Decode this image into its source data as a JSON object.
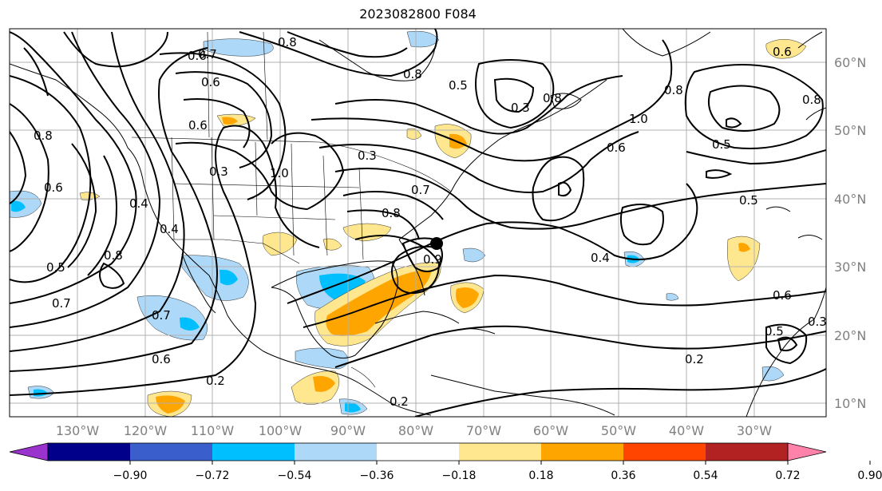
{
  "title": "2023082800 F084",
  "lat_labels": [
    "60°N",
    "50°N",
    "40°N",
    "30°N",
    "20°N",
    "10°N"
  ],
  "lon_labels": [
    "130°W",
    "120°W",
    "110°W",
    "100°W",
    "90°W",
    "80°W",
    "70°W",
    "60°W",
    "50°W",
    "40°W",
    "30°W"
  ],
  "colorbar": {
    "colors": [
      "#9a32cd",
      "#00008b",
      "#3a5fcd",
      "#00bfff",
      "#add8f7",
      "#ffffff",
      "#ffe78f",
      "#ffa500",
      "#ff4500",
      "#b22222",
      "#ff82ab"
    ],
    "ticks": [
      "−0.90",
      "−0.72",
      "−0.54",
      "−0.36",
      "−0.18",
      "0.18",
      "0.36",
      "0.54",
      "0.72",
      "0.90"
    ]
  },
  "contour_labels": [
    "0.6",
    "0.7",
    "0.6",
    "0.6",
    "0.3",
    "0.8",
    "1.0",
    "0.8",
    "0.5",
    "0.3",
    "0.8",
    "1.0",
    "0.6",
    "0.8",
    "0.5",
    "0.5",
    "0.6",
    "0.6",
    "0.5",
    "0.7",
    "0.6",
    "0.4",
    "0.8",
    "0.7",
    "0.8",
    "0.4",
    "0.9",
    "0.2",
    "0.2",
    "0.3",
    "0.8",
    "0.6",
    "0.5",
    "0.3",
    "0.7",
    "0.4",
    "0.2",
    "0.8"
  ],
  "marker": "storm-center"
}
